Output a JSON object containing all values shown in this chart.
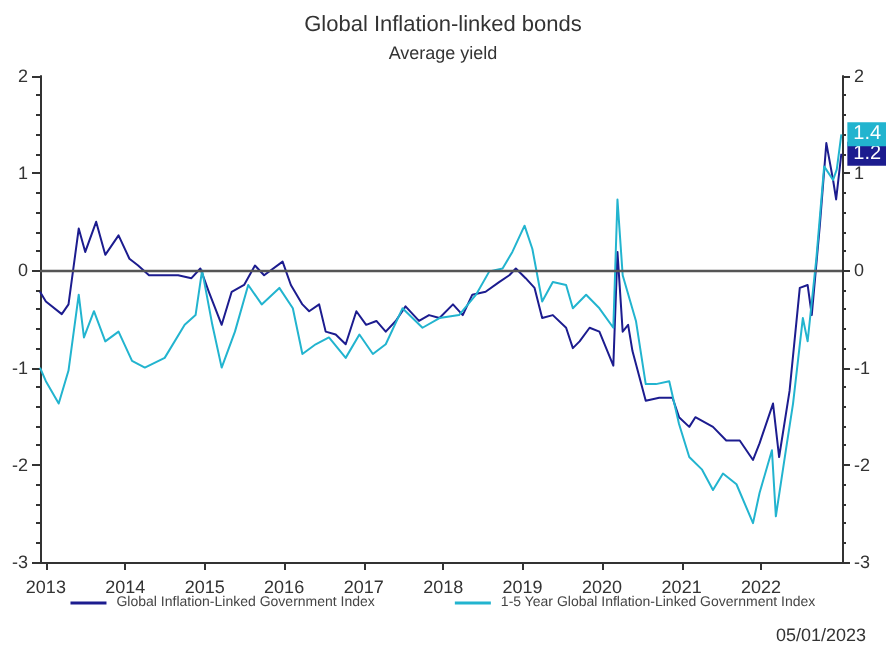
{
  "chart_data": {
    "type": "line",
    "title": "Global Inflation-linked bonds",
    "subtitle": "Average yield",
    "xlim": [
      "2012-12-05",
      "2023-01-08"
    ],
    "xticks": [
      {
        "value": "2013-01-01",
        "label": "2013"
      },
      {
        "value": "2014-01-01",
        "label": "2014"
      },
      {
        "value": "2015-01-01",
        "label": "2015"
      },
      {
        "value": "2016-01-01",
        "label": "2016"
      },
      {
        "value": "2017-01-01",
        "label": "2017"
      },
      {
        "value": "2018-01-01",
        "label": "2018"
      },
      {
        "value": "2019-01-01",
        "label": "2019"
      },
      {
        "value": "2020-01-01",
        "label": "2020"
      },
      {
        "value": "2021-01-01",
        "label": "2021"
      },
      {
        "value": "2022-01-01",
        "label": "2022"
      }
    ],
    "ylim": [
      -3,
      2
    ],
    "yticks": [
      -3,
      -2,
      -1,
      0,
      1,
      2
    ],
    "y2lim": [
      -3,
      2
    ],
    "y2ticks": [
      -3,
      -2,
      -1,
      0,
      1,
      2
    ],
    "grid": false,
    "legend": "bottom",
    "ref_lines": [
      {
        "axis": "y",
        "value": 0,
        "color": "#555555"
      }
    ],
    "annotations": [
      "05/01/2023"
    ],
    "series": [
      {
        "name": "Global Inflation-Linked Government Index",
        "color": "#1c1c8f",
        "x": [
          "2012-12-05",
          "2013-01-01",
          "2013-03-15",
          "2013-04-15",
          "2013-06-01",
          "2013-07-01",
          "2013-08-20",
          "2013-10-01",
          "2013-12-01",
          "2014-01-20",
          "2014-03-01",
          "2014-04-20",
          "2014-07-01",
          "2014-09-01",
          "2014-11-01",
          "2014-12-12",
          "2015-01-20",
          "2015-03-20",
          "2015-05-05",
          "2015-07-01",
          "2015-08-20",
          "2015-10-01",
          "2015-12-25",
          "2016-02-01",
          "2016-03-25",
          "2016-04-25",
          "2016-06-10",
          "2016-07-10",
          "2016-08-25",
          "2016-10-10",
          "2016-11-28",
          "2017-01-12",
          "2017-02-28",
          "2017-04-12",
          "2017-05-28",
          "2017-07-12",
          "2017-09-12",
          "2017-10-28",
          "2017-12-15",
          "2018-02-15",
          "2018-04-01",
          "2018-05-15",
          "2018-07-15",
          "2018-09-15",
          "2018-11-01",
          "2018-12-01",
          "2019-01-15",
          "2019-02-25",
          "2019-04-01",
          "2019-05-20",
          "2019-07-20",
          "2019-08-20",
          "2019-09-20",
          "2019-11-05",
          "2019-12-20",
          "2020-02-22",
          "2020-03-12",
          "2020-04-05",
          "2020-04-30",
          "2020-05-20",
          "2020-07-20",
          "2020-09-20",
          "2020-11-20",
          "2020-12-20",
          "2021-02-05",
          "2021-03-05",
          "2021-05-25",
          "2021-07-25",
          "2021-09-25",
          "2021-11-25",
          "2021-12-25",
          "2022-02-25",
          "2022-03-25",
          "2022-05-12",
          "2022-06-28",
          "2022-08-03",
          "2022-08-22",
          "2022-09-28",
          "2022-10-28",
          "2022-11-28",
          "2022-12-12",
          "2023-01-05"
        ],
        "values": [
          -0.22,
          -0.32,
          -0.45,
          -0.35,
          0.43,
          0.19,
          0.5,
          0.16,
          0.36,
          0.12,
          0.05,
          -0.05,
          -0.05,
          -0.05,
          -0.08,
          0.02,
          -0.22,
          -0.56,
          -0.22,
          -0.15,
          0.05,
          -0.05,
          0.09,
          -0.15,
          -0.35,
          -0.42,
          -0.35,
          -0.63,
          -0.66,
          -0.76,
          -0.42,
          -0.56,
          -0.52,
          -0.63,
          -0.52,
          -0.37,
          -0.52,
          -0.46,
          -0.49,
          -0.35,
          -0.46,
          -0.25,
          -0.22,
          -0.12,
          -0.05,
          0.02,
          -0.08,
          -0.18,
          -0.49,
          -0.46,
          -0.59,
          -0.8,
          -0.73,
          -0.59,
          -0.63,
          -0.98,
          0.19,
          -0.63,
          -0.56,
          -0.83,
          -1.34,
          -1.31,
          -1.31,
          -1.51,
          -1.61,
          -1.51,
          -1.61,
          -1.75,
          -1.75,
          -1.95,
          -1.78,
          -1.37,
          -1.92,
          -1.24,
          -0.18,
          -0.15,
          -0.46,
          0.46,
          1.31,
          0.93,
          0.73,
          1.2
        ],
        "value_labels": [
          null,
          null,
          null,
          null,
          null,
          null,
          null,
          null,
          null,
          null,
          null,
          null,
          null,
          null,
          null,
          null,
          null,
          null,
          null,
          null,
          null,
          null,
          null,
          null,
          null,
          null,
          null,
          null,
          null,
          null,
          null,
          null,
          null,
          null,
          null,
          null,
          null,
          null,
          null,
          null,
          null,
          null,
          null,
          null,
          null,
          null,
          null,
          null,
          null,
          null,
          null,
          null,
          null,
          null,
          null,
          null,
          null,
          null,
          null,
          null,
          null,
          null,
          null,
          null,
          null,
          null,
          null,
          null,
          null,
          null,
          null,
          null,
          null,
          null,
          null,
          null,
          null,
          null,
          null,
          null,
          null,
          "1.2"
        ]
      },
      {
        "name": "1-5 Year Global Inflation-Linked Government Index",
        "color": "#22b4cf",
        "x": [
          "2012-12-05",
          "2013-01-01",
          "2013-03-01",
          "2013-04-15",
          "2013-06-01",
          "2013-06-25",
          "2013-08-10",
          "2013-10-01",
          "2013-12-01",
          "2014-02-01",
          "2014-04-01",
          "2014-07-01",
          "2014-10-01",
          "2014-11-20",
          "2014-12-20",
          "2015-02-05",
          "2015-03-20",
          "2015-05-20",
          "2015-07-20",
          "2015-09-20",
          "2015-12-10",
          "2016-02-10",
          "2016-03-25",
          "2016-05-25",
          "2016-07-25",
          "2016-10-10",
          "2016-12-12",
          "2017-02-12",
          "2017-04-12",
          "2017-06-28",
          "2017-09-28",
          "2017-12-15",
          "2018-03-15",
          "2018-06-01",
          "2018-08-01",
          "2018-10-01",
          "2018-11-15",
          "2019-01-10",
          "2019-02-15",
          "2019-04-01",
          "2019-05-20",
          "2019-07-20",
          "2019-08-20",
          "2019-10-20",
          "2019-12-20",
          "2020-02-22",
          "2020-03-12",
          "2020-04-05",
          "2020-06-05",
          "2020-07-20",
          "2020-09-05",
          "2020-11-05",
          "2020-12-20",
          "2021-02-05",
          "2021-04-05",
          "2021-05-25",
          "2021-07-10",
          "2021-09-10",
          "2021-11-25",
          "2021-12-25",
          "2022-02-20",
          "2022-03-10",
          "2022-04-25",
          "2022-05-28",
          "2022-07-12",
          "2022-08-03",
          "2022-09-12",
          "2022-10-18",
          "2022-11-28",
          "2022-12-15",
          "2023-01-05"
        ],
        "values": [
          -1.0,
          -1.14,
          -1.37,
          -1.03,
          -0.25,
          -0.69,
          -0.42,
          -0.73,
          -0.63,
          -0.93,
          -1.0,
          -0.9,
          -0.56,
          -0.46,
          0.0,
          -0.56,
          -1.0,
          -0.63,
          -0.15,
          -0.35,
          -0.18,
          -0.39,
          -0.86,
          -0.76,
          -0.69,
          -0.9,
          -0.66,
          -0.86,
          -0.76,
          -0.39,
          -0.59,
          -0.49,
          -0.46,
          -0.25,
          -0.01,
          0.02,
          0.19,
          0.46,
          0.22,
          -0.32,
          -0.12,
          -0.15,
          -0.39,
          -0.25,
          -0.39,
          -0.59,
          0.73,
          -0.05,
          -0.52,
          -1.17,
          -1.17,
          -1.14,
          -1.58,
          -1.92,
          -2.05,
          -2.26,
          -2.09,
          -2.2,
          -2.6,
          -2.29,
          -1.85,
          -2.53,
          -1.85,
          -1.37,
          -0.49,
          -0.73,
          0.12,
          1.07,
          0.93,
          1.04,
          1.4
        ],
        "value_labels": [
          null,
          null,
          null,
          null,
          null,
          null,
          null,
          null,
          null,
          null,
          null,
          null,
          null,
          null,
          null,
          null,
          null,
          null,
          null,
          null,
          null,
          null,
          null,
          null,
          null,
          null,
          null,
          null,
          null,
          null,
          null,
          null,
          null,
          null,
          null,
          null,
          null,
          null,
          null,
          null,
          null,
          null,
          null,
          null,
          null,
          null,
          null,
          null,
          null,
          null,
          null,
          null,
          null,
          null,
          null,
          null,
          null,
          null,
          null,
          null,
          null,
          null,
          null,
          null,
          null,
          null,
          null,
          null,
          null,
          null,
          "1.4"
        ]
      }
    ]
  }
}
